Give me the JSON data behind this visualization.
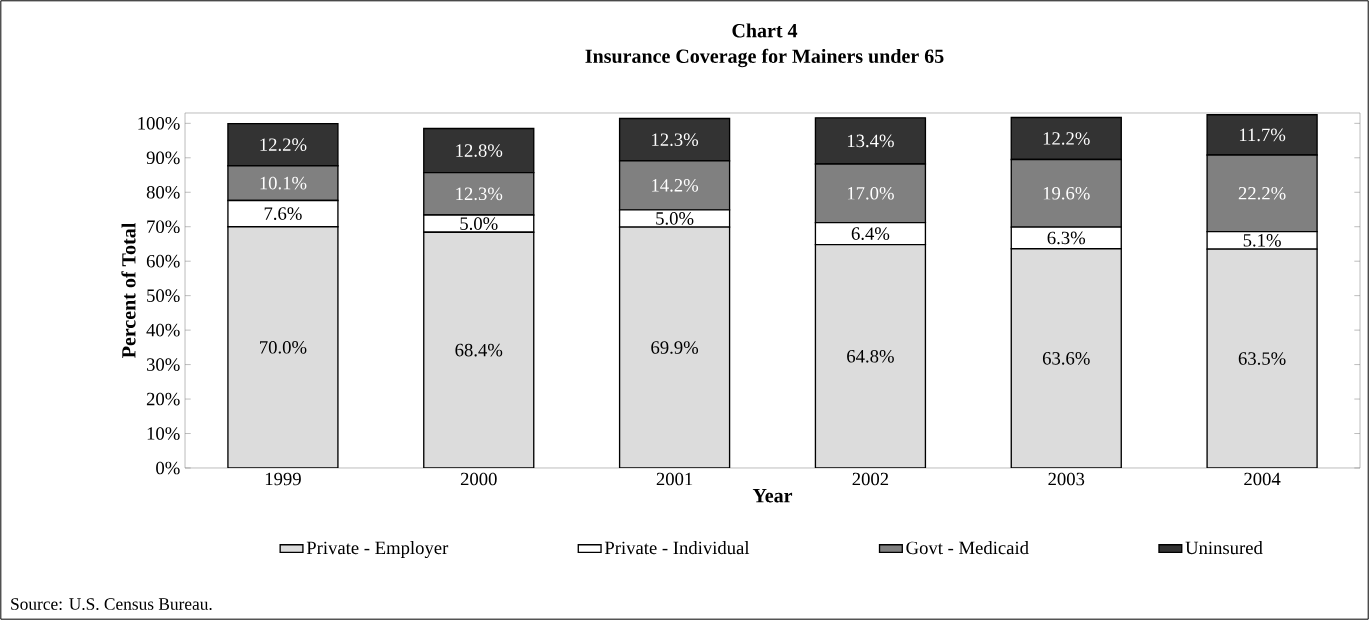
{
  "chart_data": {
    "type": "bar",
    "stacked": true,
    "title": "Chart 4",
    "subtitle": "Insurance Coverage for Mainers under 65",
    "xlabel": "Year",
    "ylabel": "Percent of Total",
    "categories": [
      "1999",
      "2000",
      "2001",
      "2002",
      "2003",
      "2004"
    ],
    "series": [
      {
        "name": "Private - Employer",
        "color": "#dcdcdc",
        "values": [
          70.0,
          68.4,
          69.9,
          64.8,
          63.6,
          63.5
        ],
        "value_labels": [
          "70.0%",
          "68.4%",
          "69.9%",
          "64.8%",
          "63.6%",
          "63.5%"
        ]
      },
      {
        "name": "Private - Individual",
        "color": "#ffffff",
        "values": [
          7.6,
          5.0,
          5.0,
          6.4,
          6.3,
          5.1
        ],
        "value_labels": [
          "7.6%",
          "5.0%",
          "5.0%",
          "6.4%",
          "6.3%",
          "5.1%"
        ]
      },
      {
        "name": "Govt - Medicaid",
        "color": "#808080",
        "values": [
          10.1,
          12.3,
          14.2,
          17.0,
          19.6,
          22.2
        ],
        "value_labels": [
          "10.1%",
          "12.3%",
          "14.2%",
          "17.0%",
          "19.6%",
          "22.2%"
        ]
      },
      {
        "name": "Uninsured",
        "color": "#333333",
        "values": [
          12.2,
          12.8,
          12.3,
          13.4,
          12.2,
          11.7
        ],
        "value_labels": [
          "12.2%",
          "12.8%",
          "12.3%",
          "13.4%",
          "12.2%",
          "11.7%"
        ]
      }
    ],
    "ylim": [
      0,
      103
    ],
    "yticks": [
      {
        "value": 0,
        "label": "0%"
      },
      {
        "value": 10,
        "label": "10%"
      },
      {
        "value": 20,
        "label": "20%"
      },
      {
        "value": 30,
        "label": "30%"
      },
      {
        "value": 40,
        "label": "40%"
      },
      {
        "value": 50,
        "label": "50%"
      },
      {
        "value": 60,
        "label": "60%"
      },
      {
        "value": 70,
        "label": "70%"
      },
      {
        "value": 80,
        "label": "80%"
      },
      {
        "value": 90,
        "label": "90%"
      },
      {
        "value": 100,
        "label": "100%"
      }
    ],
    "grid": false,
    "legend": "bottom",
    "annotations": [
      "Source: U.S. Census Bureau."
    ]
  }
}
